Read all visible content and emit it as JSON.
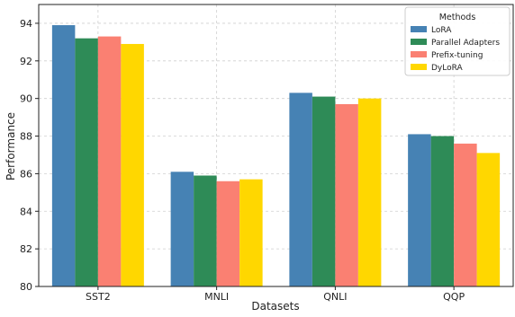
{
  "chart_data": {
    "type": "bar",
    "categories": [
      "SST2",
      "MNLI",
      "QNLI",
      "QQP"
    ],
    "series": [
      {
        "name": "LoRA",
        "color": "#4682B4",
        "values": [
          93.9,
          86.1,
          90.3,
          88.1
        ]
      },
      {
        "name": "Parallel Adapters",
        "color": "#2E8B57",
        "values": [
          93.2,
          85.9,
          90.1,
          88.0
        ]
      },
      {
        "name": "Prefix-tuning",
        "color": "#FA8072",
        "values": [
          93.3,
          85.6,
          89.7,
          87.6
        ]
      },
      {
        "name": "DyLoRA",
        "color": "#FFD700",
        "values": [
          92.9,
          85.7,
          90.0,
          87.1
        ]
      }
    ],
    "xlabel": "Datasets",
    "ylabel": "Performance",
    "ylim": [
      80,
      95
    ],
    "yticks": [
      80,
      82,
      84,
      86,
      88,
      90,
      92,
      94
    ],
    "grid": true,
    "legend": {
      "title": "Methods",
      "placement": "top-right"
    }
  }
}
